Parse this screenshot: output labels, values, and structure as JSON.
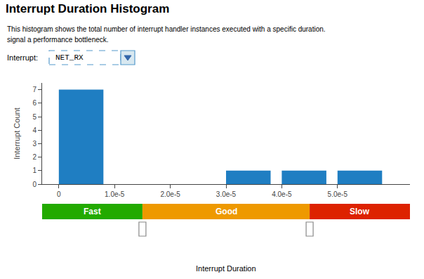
{
  "chart_data": {
    "type": "bar",
    "title": "Interrupt Duration Histogram",
    "subtitle": [
      "This histogram shows the total number of interrupt handler instances executed with a specific duration.",
      "signal a performance bottleneck."
    ],
    "selector": {
      "label": "Interrupt:",
      "value": "NET_RX"
    },
    "xlabel": "Interrupt Duration",
    "ylabel": "Interrupt Count",
    "x": [
      0.0,
      3e-05,
      4e-05,
      5e-05
    ],
    "bar_width": 8e-06,
    "values": [
      7,
      1,
      1,
      1
    ],
    "color": "#1f7ec2",
    "xlim": [
      -3e-06,
      6.3e-05
    ],
    "ylim": [
      0,
      7.5
    ],
    "xticks": [
      0,
      {
        "value": 1e-05,
        "label": "1.0e-5"
      },
      {
        "value": 2e-05,
        "label": "2.0e-5"
      },
      {
        "value": 3e-05,
        "label": "3.0e-5"
      },
      {
        "value": 4e-05,
        "label": "4.0e-5"
      },
      {
        "value": 5e-05,
        "label": "5.0e-5"
      }
    ],
    "yticks": [
      0,
      1,
      2,
      3,
      4,
      5,
      6,
      7
    ],
    "grid": false,
    "bands": [
      {
        "label": "Fast",
        "color": "#22aa00",
        "from": -3e-06,
        "to": 1.5e-05
      },
      {
        "label": "Good",
        "color": "#ee9900",
        "from": 1.5e-05,
        "to": 4.5e-05
      },
      {
        "label": "Slow",
        "color": "#dd2200",
        "from": 4.5e-05,
        "to": 6.3e-05
      }
    ],
    "thresholds": [
      1.5e-05,
      4.5e-05
    ]
  }
}
